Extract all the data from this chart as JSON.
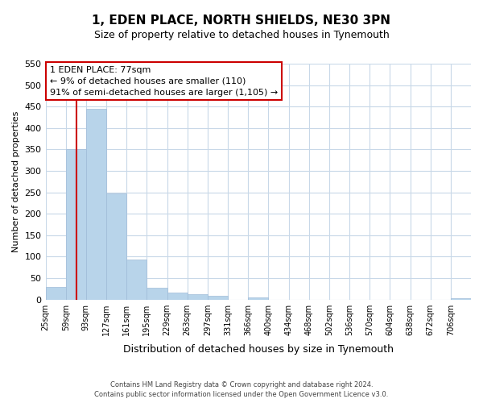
{
  "title": "1, EDEN PLACE, NORTH SHIELDS, NE30 3PN",
  "subtitle": "Size of property relative to detached houses in Tynemouth",
  "bar_labels": [
    "25sqm",
    "59sqm",
    "93sqm",
    "127sqm",
    "161sqm",
    "195sqm",
    "229sqm",
    "263sqm",
    "297sqm",
    "331sqm",
    "366sqm",
    "400sqm",
    "434sqm",
    "468sqm",
    "502sqm",
    "536sqm",
    "570sqm",
    "604sqm",
    "638sqm",
    "672sqm",
    "706sqm"
  ],
  "bar_values": [
    30,
    350,
    445,
    248,
    93,
    27,
    16,
    13,
    8,
    0,
    5,
    0,
    0,
    0,
    0,
    0,
    0,
    0,
    0,
    0,
    4
  ],
  "bar_color": "#b8d4ea",
  "bar_edge_color": "#a0bcd8",
  "annotation_line1": "1 EDEN PLACE: 77sqm",
  "annotation_line2": "← 9% of detached houses are smaller (110)",
  "annotation_line3": "91% of semi-detached houses are larger (1,105) →",
  "ylabel": "Number of detached properties",
  "xlabel": "Distribution of detached houses by size in Tynemouth",
  "ylim": [
    0,
    550
  ],
  "yticks": [
    0,
    50,
    100,
    150,
    200,
    250,
    300,
    350,
    400,
    450,
    500,
    550
  ],
  "footer_line1": "Contains HM Land Registry data © Crown copyright and database right 2024.",
  "footer_line2": "Contains public sector information licensed under the Open Government Licence v3.0.",
  "background_color": "#ffffff",
  "grid_color": "#c8d8e8",
  "annotation_box_color": "#ffffff",
  "annotation_box_edge": "#cc0000",
  "red_line_color": "#cc0000"
}
